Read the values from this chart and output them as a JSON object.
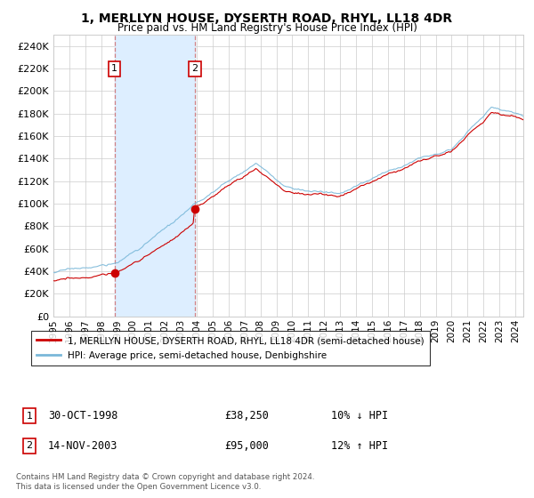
{
  "title": "1, MERLLYN HOUSE, DYSERTH ROAD, RHYL, LL18 4DR",
  "subtitle": "Price paid vs. HM Land Registry's House Price Index (HPI)",
  "xlim_start": 1995.0,
  "xlim_end": 2024.5,
  "ylim": [
    0,
    250000
  ],
  "yticks": [
    0,
    20000,
    40000,
    60000,
    80000,
    100000,
    120000,
    140000,
    160000,
    180000,
    200000,
    220000,
    240000
  ],
  "xticks": [
    1995,
    1996,
    1997,
    1998,
    1999,
    2000,
    2001,
    2002,
    2003,
    2004,
    2005,
    2006,
    2007,
    2008,
    2009,
    2010,
    2011,
    2012,
    2013,
    2014,
    2015,
    2016,
    2017,
    2018,
    2019,
    2020,
    2021,
    2022,
    2023,
    2024
  ],
  "sale1_date": 1998.83,
  "sale1_price": 38250,
  "sale1_label": "1",
  "sale1_text": "30-OCT-1998",
  "sale1_amount": "£38,250",
  "sale1_hpi": "10% ↓ HPI",
  "sale2_date": 2003.87,
  "sale2_price": 95000,
  "sale2_label": "2",
  "sale2_text": "14-NOV-2003",
  "sale2_amount": "£95,000",
  "sale2_hpi": "12% ↑ HPI",
  "hpi_line_color": "#7ab8d9",
  "price_line_color": "#cc0000",
  "sale_dot_color": "#cc0000",
  "shade_color": "#ddeeff",
  "vline_color": "#cc6666",
  "background_color": "#ffffff",
  "grid_color": "#cccccc",
  "legend_label_price": "1, MERLLYN HOUSE, DYSERTH ROAD, RHYL, LL18 4DR (semi-detached house)",
  "legend_label_hpi": "HPI: Average price, semi-detached house, Denbighshire",
  "footnote": "Contains HM Land Registry data © Crown copyright and database right 2024.\nThis data is licensed under the Open Government Licence v3.0."
}
